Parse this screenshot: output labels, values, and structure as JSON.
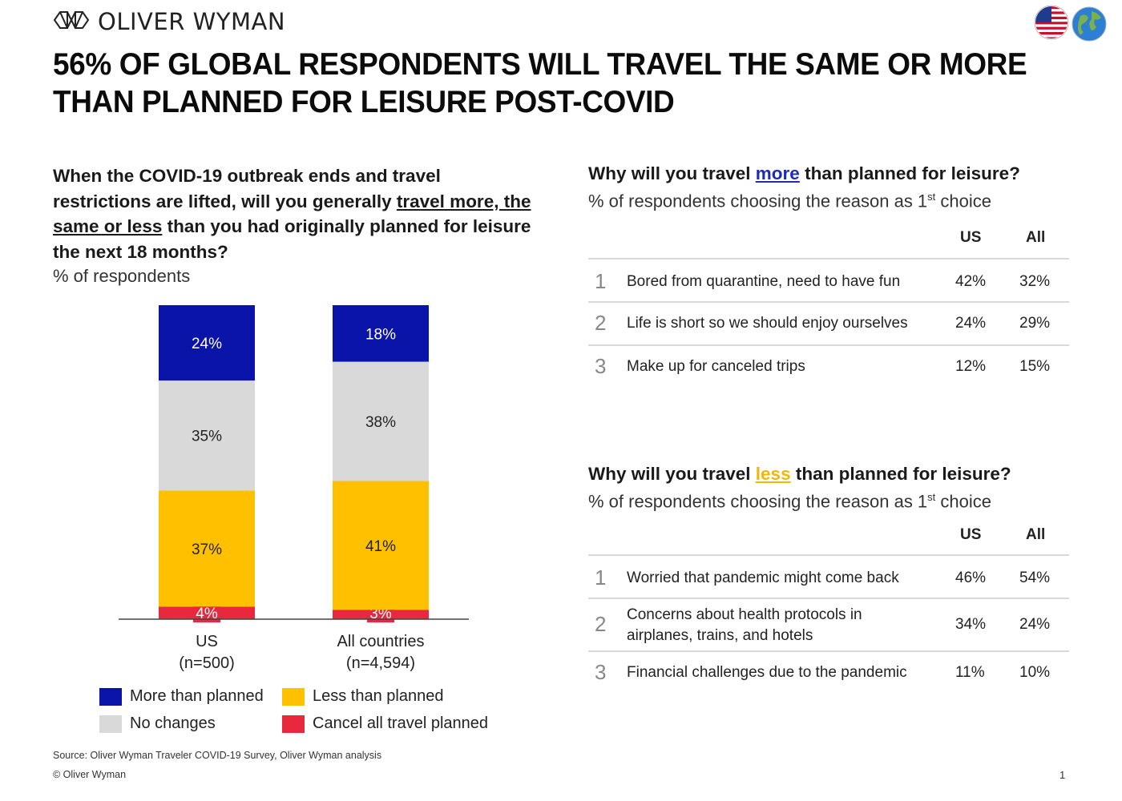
{
  "header": {
    "brand": "OLIVER WYMAN",
    "title": "56% OF GLOBAL RESPONDENTS WILL TRAVEL THE SAME OR MORE THAN PLANNED FOR LEISURE POST-COVID",
    "icons": [
      "oliver-wyman-logo-icon",
      "us-flag-icon",
      "globe-icon"
    ]
  },
  "question": {
    "part1": "When the COVID-19 outbreak ends and travel restrictions are lifted, will you generally ",
    "underlined": "travel more, the same or less",
    "part2": " than you had originally planned for leisure the next 18 months?",
    "subtitle": "% of respondents"
  },
  "chart_data": {
    "type": "bar",
    "stacked": true,
    "categories": [
      "US\n(n=500)",
      "All countries\n(n=4,594)"
    ],
    "category_lines": [
      [
        "US",
        "(n=500)"
      ],
      [
        "All countries",
        "(n=4,594)"
      ]
    ],
    "series": [
      {
        "name": "Cancel all travel planned",
        "values": [
          4,
          3
        ],
        "color": "#e8283c",
        "label_color": "#ffffff"
      },
      {
        "name": "Less than planned",
        "values": [
          37,
          41
        ],
        "color": "#ffc000",
        "label_color": "#222222"
      },
      {
        "name": "No changes",
        "values": [
          35,
          38
        ],
        "color": "#d9d9d9",
        "label_color": "#222222"
      },
      {
        "name": "More than planned",
        "values": [
          24,
          18
        ],
        "color": "#0a14a8",
        "label_color": "#ffffff"
      }
    ],
    "value_suffix": "%",
    "legend_position": "bottom",
    "grid": false
  },
  "legend": [
    {
      "label": "More than planned",
      "color": "#0a14a8"
    },
    {
      "label": "Less than planned",
      "color": "#ffc000"
    },
    {
      "label": "No changes",
      "color": "#d9d9d9"
    },
    {
      "label": "Cancel all travel planned",
      "color": "#e8283c"
    }
  ],
  "table_more": {
    "title_pre": "Why will you travel ",
    "title_hl": "more",
    "title_post": " than planned for leisure?",
    "subtitle_pre": "% of respondents choosing the reason as 1",
    "subtitle_sup": "st",
    "subtitle_post": " choice",
    "col_us": "US",
    "col_all": "All",
    "rows": [
      {
        "rank": "1",
        "reason": "Bored from quarantine, need to have fun",
        "us": "42%",
        "all": "32%"
      },
      {
        "rank": "2",
        "reason": "Life is short so we should enjoy ourselves",
        "us": "24%",
        "all": "29%"
      },
      {
        "rank": "3",
        "reason": "Make up for canceled trips",
        "us": "12%",
        "all": "15%"
      }
    ]
  },
  "table_less": {
    "title_pre": "Why will you travel ",
    "title_hl": "less",
    "title_post": " than planned for leisure?",
    "subtitle_pre": "% of respondents choosing the reason as 1",
    "subtitle_sup": "st",
    "subtitle_post": " choice",
    "col_us": "US",
    "col_all": "All",
    "rows": [
      {
        "rank": "1",
        "reason": "Worried that pandemic might come back",
        "us": "46%",
        "all": "54%"
      },
      {
        "rank": "2",
        "reason": "Concerns about health protocols in airplanes, trains, and hotels",
        "us": "34%",
        "all": "24%"
      },
      {
        "rank": "3",
        "reason": "Financial challenges due to the pandemic",
        "us": "11%",
        "all": "10%"
      }
    ]
  },
  "footer": {
    "source": "Source: Oliver Wyman Traveler COVID-19 Survey, Oliver Wyman analysis",
    "copyright": "© Oliver Wyman",
    "page": "1"
  }
}
